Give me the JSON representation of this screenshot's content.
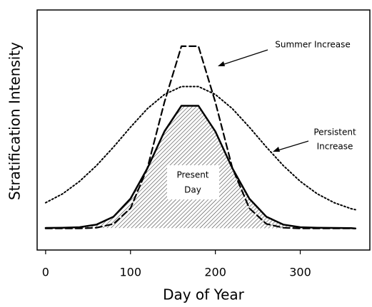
{
  "chart_data": {
    "type": "line",
    "xlabel": "Day of Year",
    "ylabel": "Stratification Intensity",
    "x": [
      0,
      20,
      40,
      60,
      80,
      100,
      120,
      140,
      160,
      180,
      200,
      220,
      240,
      260,
      280,
      300,
      320,
      340,
      360,
      365
    ],
    "series": [
      {
        "name": "Present Day",
        "color": "#000000",
        "style": "solid",
        "fill": "hatch",
        "values": [
          9.2,
          9.3,
          9.5,
          10.6,
          13.9,
          21.4,
          34.1,
          49.4,
          60.1,
          60.1,
          49.4,
          34.1,
          21.4,
          13.9,
          10.6,
          9.5,
          9.3,
          9.2,
          9.1,
          9.0
        ]
      },
      {
        "name": "Summer Increase",
        "color": "#000000",
        "style": "dashed",
        "values": [
          9.0,
          9.0,
          9.0,
          9.3,
          10.9,
          17.4,
          34.2,
          61.6,
          84.9,
          84.9,
          61.6,
          34.2,
          17.4,
          10.9,
          9.3,
          9.0,
          9.0,
          9.0,
          9.0,
          9.0
        ]
      },
      {
        "name": "Persistent Increase",
        "color": "#000000",
        "style": "dotted",
        "values": [
          19.7,
          23.4,
          28.6,
          35.2,
          42.9,
          51.2,
          58.9,
          64.8,
          68.1,
          68.1,
          64.8,
          58.9,
          51.2,
          42.9,
          35.2,
          28.6,
          23.4,
          19.7,
          17.2,
          16.8
        ]
      }
    ],
    "annotations": [
      {
        "lines": [
          "Summer Increase"
        ]
      },
      {
        "lines": [
          "Persistent",
          "Increase"
        ]
      },
      {
        "lines": [
          "Present",
          "Day"
        ]
      }
    ],
    "xlim": [
      -10,
      382
    ],
    "xticks": [
      0,
      100,
      200,
      300
    ],
    "ylim": [
      0,
      100
    ],
    "yticks": [],
    "grid": false
  }
}
